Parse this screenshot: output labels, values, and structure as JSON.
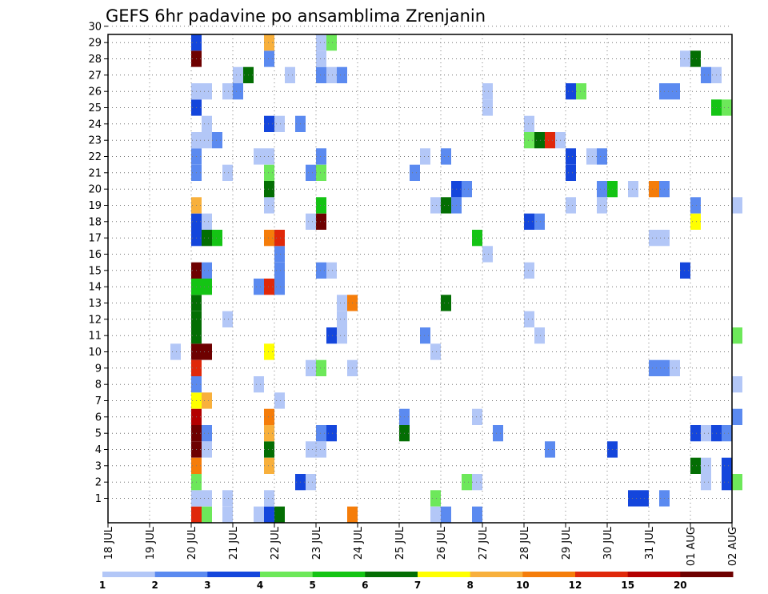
{
  "chart_data": {
    "type": "heatmap",
    "title": "GEFS 6hr padavine po ansamblima Zrenjanin",
    "xlabel": "",
    "ylabel": "",
    "x_labels": [
      "18 JUL",
      "19 JUL",
      "20 JUL",
      "21 JUL",
      "22 JUL",
      "23 JUL",
      "24 JUL",
      "25 JUL",
      "26 JUL",
      "27 JUL",
      "28 JUL",
      "29 JUL",
      "30 JUL",
      "31 JUL",
      "01 AUG",
      "02 AUG"
    ],
    "y_labels": [
      "1",
      "2",
      "3",
      "4",
      "5",
      "6",
      "7",
      "8",
      "9",
      "10",
      "11",
      "12",
      "13",
      "14",
      "15",
      "16",
      "17",
      "18",
      "19",
      "20",
      "21",
      "22",
      "23",
      "24",
      "25",
      "26",
      "27",
      "28",
      "29",
      "30"
    ],
    "xlim_days": [
      0,
      15
    ],
    "ylim": [
      0,
      30
    ],
    "grid": true,
    "colorbar": {
      "labels": [
        "1",
        "2",
        "3",
        "4",
        "5",
        "6",
        "7",
        "8",
        "10",
        "12",
        "15",
        "20"
      ],
      "colors": [
        "#b3c7f7",
        "#5b8af0",
        "#1446dc",
        "#6de85a",
        "#14c414",
        "#036e03",
        "#ffff00",
        "#f8b03c",
        "#f57d0a",
        "#e0280a",
        "#b40000",
        "#6e0000"
      ]
    },
    "series": [
      {
        "member": 1,
        "cells": [
          [
            2,
            "#e0280a"
          ],
          [
            2.25,
            "#6de85a"
          ],
          [
            2.75,
            "#b3c7f7"
          ],
          [
            3.5,
            "#b3c7f7"
          ],
          [
            3.75,
            "#1446dc"
          ],
          [
            4,
            "#036e03"
          ],
          [
            5.75,
            "#f57d0a"
          ],
          [
            7.75,
            "#b3c7f7"
          ],
          [
            8,
            "#5b8af0"
          ],
          [
            8.75,
            "#5b8af0"
          ]
        ]
      },
      {
        "member": 2,
        "cells": [
          [
            2,
            "#b3c7f7"
          ],
          [
            2.25,
            "#b3c7f7"
          ],
          [
            2.75,
            "#b3c7f7"
          ],
          [
            3.75,
            "#b3c7f7"
          ],
          [
            7.75,
            "#6de85a"
          ],
          [
            12.5,
            "#1446dc"
          ],
          [
            12.75,
            "#1446dc"
          ],
          [
            13.25,
            "#5b8af0"
          ]
        ]
      },
      {
        "member": 3,
        "cells": [
          [
            2,
            "#6de85a"
          ],
          [
            4.5,
            "#1446dc"
          ],
          [
            4.75,
            "#b3c7f7"
          ],
          [
            8.5,
            "#6de85a"
          ],
          [
            8.75,
            "#b3c7f7"
          ],
          [
            14.25,
            "#b3c7f7"
          ],
          [
            14.75,
            "#1446dc"
          ],
          [
            15,
            "#6de85a"
          ]
        ]
      },
      {
        "member": 4,
        "cells": [
          [
            2,
            "#f57d0a"
          ],
          [
            3.75,
            "#f8b03c"
          ],
          [
            14,
            "#036e03"
          ],
          [
            14.25,
            "#b3c7f7"
          ],
          [
            14.75,
            "#1446dc"
          ]
        ]
      },
      {
        "member": 5,
        "cells": [
          [
            2,
            "#6e0000"
          ],
          [
            2.25,
            "#b3c7f7"
          ],
          [
            3.75,
            "#036e03"
          ],
          [
            4.75,
            "#b3c7f7"
          ],
          [
            5,
            "#b3c7f7"
          ],
          [
            10.5,
            "#5b8af0"
          ],
          [
            12,
            "#1446dc"
          ]
        ]
      },
      {
        "member": 6,
        "cells": [
          [
            2,
            "#6e0000"
          ],
          [
            2.25,
            "#5b8af0"
          ],
          [
            3.75,
            "#f8b03c"
          ],
          [
            5,
            "#5b8af0"
          ],
          [
            5.25,
            "#1446dc"
          ],
          [
            7,
            "#036e03"
          ],
          [
            9.25,
            "#5b8af0"
          ],
          [
            14,
            "#1446dc"
          ],
          [
            14.25,
            "#b3c7f7"
          ],
          [
            14.5,
            "#1446dc"
          ],
          [
            14.75,
            "#5b8af0"
          ]
        ]
      },
      {
        "member": 7,
        "cells": [
          [
            2,
            "#b40000"
          ],
          [
            3.75,
            "#f57d0a"
          ],
          [
            7,
            "#5b8af0"
          ],
          [
            8.75,
            "#b3c7f7"
          ],
          [
            15,
            "#5b8af0"
          ]
        ]
      },
      {
        "member": 8,
        "cells": [
          [
            2,
            "#ffff00"
          ],
          [
            2.25,
            "#f8b03c"
          ],
          [
            4,
            "#b3c7f7"
          ]
        ]
      },
      {
        "member": 9,
        "cells": [
          [
            2,
            "#5b8af0"
          ],
          [
            3.5,
            "#b3c7f7"
          ],
          [
            15,
            "#b3c7f7"
          ]
        ]
      },
      {
        "member": 10,
        "cells": [
          [
            2,
            "#e0280a"
          ],
          [
            4.75,
            "#b3c7f7"
          ],
          [
            5,
            "#6de85a"
          ],
          [
            5.75,
            "#b3c7f7"
          ],
          [
            13,
            "#5b8af0"
          ],
          [
            13.25,
            "#5b8af0"
          ],
          [
            13.5,
            "#b3c7f7"
          ]
        ]
      },
      {
        "member": 11,
        "cells": [
          [
            1.5,
            "#b3c7f7"
          ],
          [
            2,
            "#6e0000"
          ],
          [
            2.25,
            "#6e0000"
          ],
          [
            3.75,
            "#ffff00"
          ],
          [
            7.75,
            "#b3c7f7"
          ]
        ]
      },
      {
        "member": 12,
        "cells": [
          [
            2,
            "#036e03"
          ],
          [
            5.25,
            "#1446dc"
          ],
          [
            5.5,
            "#b3c7f7"
          ],
          [
            7.5,
            "#5b8af0"
          ],
          [
            10.25,
            "#b3c7f7"
          ],
          [
            15,
            "#6de85a"
          ]
        ]
      },
      {
        "member": 13,
        "cells": [
          [
            2,
            "#036e03"
          ],
          [
            2.75,
            "#b3c7f7"
          ],
          [
            5.5,
            "#b3c7f7"
          ],
          [
            10,
            "#b3c7f7"
          ]
        ]
      },
      {
        "member": 14,
        "cells": [
          [
            2,
            "#036e03"
          ],
          [
            5.5,
            "#b3c7f7"
          ],
          [
            5.75,
            "#f57d0a"
          ],
          [
            8,
            "#036e03"
          ]
        ]
      },
      {
        "member": 15,
        "cells": [
          [
            2,
            "#14c414"
          ],
          [
            2.25,
            "#14c414"
          ],
          [
            3.5,
            "#5b8af0"
          ],
          [
            3.75,
            "#e0280a"
          ],
          [
            4,
            "#5b8af0"
          ]
        ]
      },
      {
        "member": 16,
        "cells": [
          [
            2,
            "#6e0000"
          ],
          [
            2.25,
            "#5b8af0"
          ],
          [
            4,
            "#5b8af0"
          ],
          [
            5,
            "#5b8af0"
          ],
          [
            5.25,
            "#b3c7f7"
          ],
          [
            10,
            "#b3c7f7"
          ],
          [
            13.75,
            "#1446dc"
          ]
        ]
      },
      {
        "member": 17,
        "cells": [
          [
            4,
            "#5b8af0"
          ],
          [
            9,
            "#b3c7f7"
          ]
        ]
      },
      {
        "member": 18,
        "cells": [
          [
            2,
            "#1446dc"
          ],
          [
            2.25,
            "#036e03"
          ],
          [
            2.5,
            "#14c414"
          ],
          [
            3.75,
            "#f57d0a"
          ],
          [
            4,
            "#e0280a"
          ],
          [
            8.75,
            "#14c414"
          ],
          [
            13,
            "#b3c7f7"
          ],
          [
            13.25,
            "#b3c7f7"
          ]
        ]
      },
      {
        "member": 19,
        "cells": [
          [
            2,
            "#1446dc"
          ],
          [
            2.25,
            "#b3c7f7"
          ],
          [
            4.75,
            "#b3c7f7"
          ],
          [
            5,
            "#6e0000"
          ],
          [
            10,
            "#1446dc"
          ],
          [
            10.25,
            "#5b8af0"
          ],
          [
            14,
            "#ffff00"
          ]
        ]
      },
      {
        "member": 20,
        "cells": [
          [
            2,
            "#f8b03c"
          ],
          [
            3.75,
            "#b3c7f7"
          ],
          [
            5,
            "#14c414"
          ],
          [
            7.75,
            "#b3c7f7"
          ],
          [
            8,
            "#036e03"
          ],
          [
            8.25,
            "#5b8af0"
          ],
          [
            11,
            "#b3c7f7"
          ],
          [
            11.75,
            "#b3c7f7"
          ],
          [
            14,
            "#5b8af0"
          ],
          [
            15,
            "#b3c7f7"
          ]
        ]
      },
      {
        "member": 21,
        "cells": [
          [
            3.75,
            "#036e03"
          ],
          [
            8.25,
            "#1446dc"
          ],
          [
            8.5,
            "#5b8af0"
          ],
          [
            11.75,
            "#5b8af0"
          ],
          [
            12,
            "#14c414"
          ],
          [
            12.5,
            "#b3c7f7"
          ],
          [
            13,
            "#f57d0a"
          ],
          [
            13.25,
            "#5b8af0"
          ]
        ]
      },
      {
        "member": 22,
        "cells": [
          [
            2,
            "#5b8af0"
          ],
          [
            2.75,
            "#b3c7f7"
          ],
          [
            3.75,
            "#6de85a"
          ],
          [
            4.75,
            "#5b8af0"
          ],
          [
            5,
            "#6de85a"
          ],
          [
            7.25,
            "#5b8af0"
          ],
          [
            11,
            "#1446dc"
          ]
        ]
      },
      {
        "member": 23,
        "cells": [
          [
            2,
            "#5b8af0"
          ],
          [
            3.5,
            "#b3c7f7"
          ],
          [
            3.75,
            "#b3c7f7"
          ],
          [
            5,
            "#5b8af0"
          ],
          [
            7.5,
            "#b3c7f7"
          ],
          [
            8,
            "#5b8af0"
          ],
          [
            11,
            "#1446dc"
          ],
          [
            11.5,
            "#b3c7f7"
          ],
          [
            11.75,
            "#5b8af0"
          ]
        ]
      },
      {
        "member": 24,
        "cells": [
          [
            2,
            "#b3c7f7"
          ],
          [
            2.25,
            "#b3c7f7"
          ],
          [
            2.5,
            "#5b8af0"
          ],
          [
            10,
            "#6de85a"
          ],
          [
            10.25,
            "#036e03"
          ],
          [
            10.5,
            "#e0280a"
          ],
          [
            10.75,
            "#b3c7f7"
          ]
        ]
      },
      {
        "member": 25,
        "cells": [
          [
            2.25,
            "#b3c7f7"
          ],
          [
            3.75,
            "#1446dc"
          ],
          [
            4,
            "#b3c7f7"
          ],
          [
            4.5,
            "#5b8af0"
          ],
          [
            10,
            "#b3c7f7"
          ]
        ]
      },
      {
        "member": 26,
        "cells": [
          [
            2,
            "#1446dc"
          ],
          [
            9,
            "#b3c7f7"
          ],
          [
            14.5,
            "#14c414"
          ],
          [
            14.75,
            "#6de85a"
          ]
        ]
      },
      {
        "member": 27,
        "cells": [
          [
            2,
            "#b3c7f7"
          ],
          [
            2.25,
            "#b3c7f7"
          ],
          [
            2.75,
            "#b3c7f7"
          ],
          [
            3,
            "#5b8af0"
          ],
          [
            9,
            "#b3c7f7"
          ],
          [
            11,
            "#1446dc"
          ],
          [
            11.25,
            "#6de85a"
          ],
          [
            13.25,
            "#5b8af0"
          ],
          [
            13.5,
            "#5b8af0"
          ]
        ]
      },
      {
        "member": 28,
        "cells": [
          [
            3,
            "#b3c7f7"
          ],
          [
            3.25,
            "#036e03"
          ],
          [
            4.25,
            "#b3c7f7"
          ],
          [
            5,
            "#5b8af0"
          ],
          [
            5.25,
            "#b3c7f7"
          ],
          [
            5.5,
            "#5b8af0"
          ],
          [
            14.25,
            "#5b8af0"
          ],
          [
            14.5,
            "#b3c7f7"
          ]
        ]
      },
      {
        "member": 29,
        "cells": [
          [
            2,
            "#6e0000"
          ],
          [
            3.75,
            "#5b8af0"
          ],
          [
            5,
            "#b3c7f7"
          ],
          [
            13.75,
            "#b3c7f7"
          ],
          [
            14,
            "#036e03"
          ]
        ]
      },
      {
        "member": 30,
        "cells": [
          [
            2,
            "#1446dc"
          ],
          [
            3.75,
            "#f8b03c"
          ],
          [
            5,
            "#b3c7f7"
          ],
          [
            5.25,
            "#6de85a"
          ]
        ]
      }
    ]
  }
}
